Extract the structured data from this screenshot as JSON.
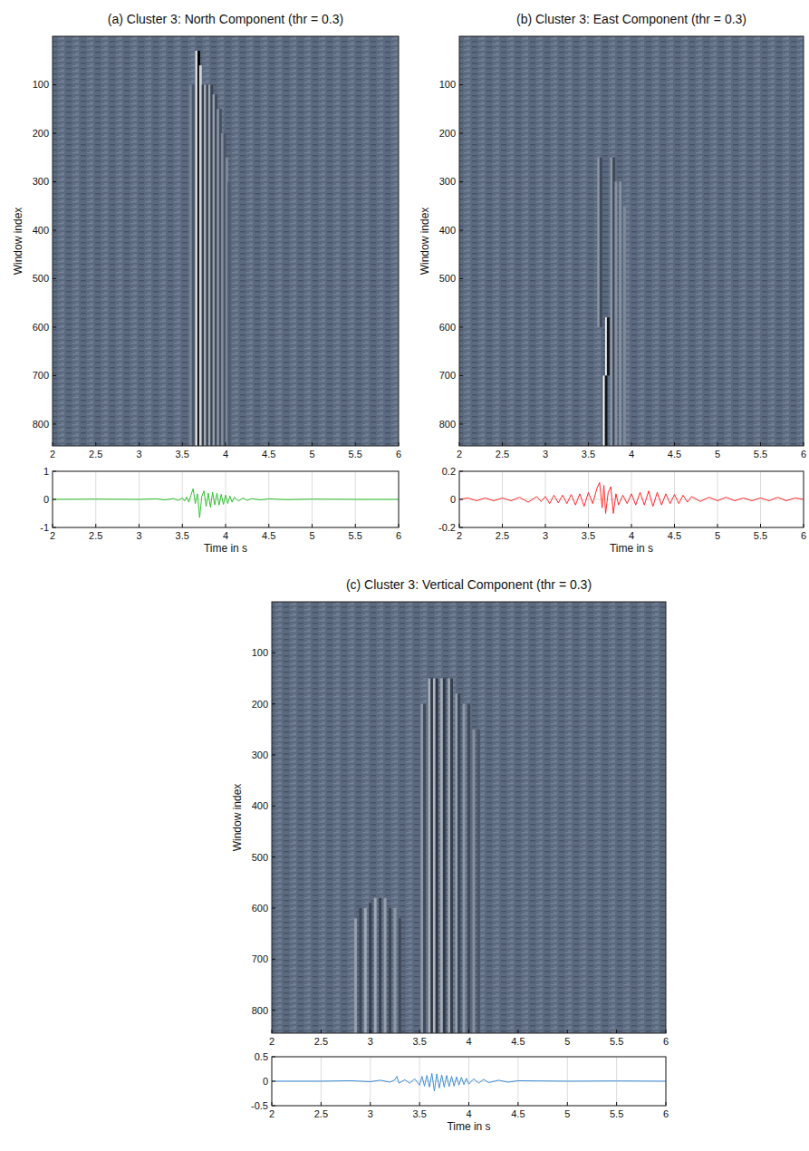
{
  "chart_data": [
    {
      "type": "heatmap",
      "title": "(a) Cluster 3: North Component (thr = 0.3)",
      "y_label": "Window index",
      "xlim": [
        2,
        6
      ],
      "xticks": [
        2,
        2.5,
        3,
        3.5,
        4,
        4.5,
        5,
        5.5,
        6
      ],
      "ylim": [
        845,
        0
      ],
      "yticks": [
        100,
        200,
        300,
        400,
        500,
        600,
        700,
        800
      ],
      "stripes": [
        {
          "time": 3.6,
          "windows": [
            100,
            845
          ],
          "value": 0.2
        },
        {
          "time": 3.625,
          "windows": [
            100,
            845
          ],
          "value": -0.2
        },
        {
          "time": 3.665,
          "windows": [
            30,
            845
          ],
          "value": 0.8
        },
        {
          "time": 3.69,
          "windows": [
            30,
            845
          ],
          "value": -1
        },
        {
          "time": 3.71,
          "windows": [
            60,
            845
          ],
          "value": 0.7
        },
        {
          "time": 3.74,
          "windows": [
            100,
            845
          ],
          "value": -0.4
        },
        {
          "time": 3.765,
          "windows": [
            100,
            845
          ],
          "value": 0.45
        },
        {
          "time": 3.79,
          "windows": [
            100,
            845
          ],
          "value": -0.4
        },
        {
          "time": 3.815,
          "windows": [
            100,
            845
          ],
          "value": 0.4
        },
        {
          "time": 3.84,
          "windows": [
            100,
            845
          ],
          "value": -0.35
        },
        {
          "time": 3.865,
          "windows": [
            120,
            845
          ],
          "value": 0.35
        },
        {
          "time": 3.89,
          "windows": [
            120,
            845
          ],
          "value": -0.3
        },
        {
          "time": 3.915,
          "windows": [
            150,
            845
          ],
          "value": 0.3
        },
        {
          "time": 3.94,
          "windows": [
            150,
            845
          ],
          "value": -0.25
        },
        {
          "time": 3.965,
          "windows": [
            200,
            845
          ],
          "value": 0.25
        },
        {
          "time": 3.99,
          "windows": [
            200,
            845
          ],
          "value": -0.2
        },
        {
          "time": 4.015,
          "windows": [
            250,
            845
          ],
          "value": 0.2
        },
        {
          "time": 4.04,
          "windows": [
            300,
            845
          ],
          "value": -0.15
        }
      ]
    },
    {
      "type": "line",
      "x_label": "Time in s",
      "color": "#2fc42f",
      "grid": true,
      "xlim": [
        2,
        6
      ],
      "xticks": [
        2,
        2.5,
        3,
        3.5,
        4,
        4.5,
        5,
        5.5,
        6
      ],
      "ylim": [
        -1,
        1
      ],
      "yticks": [
        -1,
        0,
        1
      ],
      "x": [
        2.0,
        2.5,
        3.0,
        3.2,
        3.3,
        3.4,
        3.45,
        3.5,
        3.525,
        3.55,
        3.575,
        3.6,
        3.625,
        3.65,
        3.675,
        3.7,
        3.725,
        3.75,
        3.775,
        3.8,
        3.825,
        3.85,
        3.875,
        3.9,
        3.925,
        3.95,
        3.975,
        4.0,
        4.025,
        4.05,
        4.075,
        4.1,
        4.15,
        4.2,
        4.25,
        4.3,
        4.4,
        4.5,
        4.7,
        5.0,
        5.5,
        6.0
      ],
      "values": [
        0,
        0.01,
        0,
        0.02,
        -0.02,
        0.03,
        -0.04,
        0.05,
        -0.06,
        0.08,
        -0.1,
        0.15,
        0.38,
        -0.15,
        0.2,
        -0.65,
        0.1,
        0.3,
        -0.25,
        0.22,
        -0.28,
        0.25,
        -0.2,
        0.22,
        -0.2,
        0.18,
        -0.18,
        0.15,
        -0.15,
        0.12,
        -0.1,
        0.08,
        -0.06,
        0.05,
        -0.04,
        0.03,
        -0.02,
        0.02,
        -0.01,
        0.01,
        0,
        0
      ]
    },
    {
      "type": "heatmap",
      "title": "(b) Cluster 3: East Component (thr = 0.3)",
      "y_label": "Window index",
      "xlim": [
        2,
        6
      ],
      "xticks": [
        2,
        2.5,
        3,
        3.5,
        4,
        4.5,
        5,
        5.5,
        6
      ],
      "ylim": [
        845,
        0
      ],
      "yticks": [
        100,
        200,
        300,
        400,
        500,
        600,
        700,
        800
      ],
      "stripes": [
        {
          "time": 3.62,
          "windows": [
            250,
            600
          ],
          "value": 0.3
        },
        {
          "time": 3.645,
          "windows": [
            250,
            600
          ],
          "value": -0.3
        },
        {
          "time": 3.77,
          "windows": [
            250,
            845
          ],
          "value": 0.3
        },
        {
          "time": 3.795,
          "windows": [
            250,
            845
          ],
          "value": -0.3
        },
        {
          "time": 3.82,
          "windows": [
            300,
            845
          ],
          "value": 0.25
        },
        {
          "time": 3.87,
          "windows": [
            300,
            845
          ],
          "value": 0.25
        },
        {
          "time": 3.92,
          "windows": [
            350,
            845
          ],
          "value": 0.2
        },
        {
          "time": 3.71,
          "windows": [
            580,
            700
          ],
          "value": 0.9
        },
        {
          "time": 3.73,
          "windows": [
            580,
            700
          ],
          "value": -0.8
        },
        {
          "time": 3.685,
          "windows": [
            700,
            845
          ],
          "value": 1
        },
        {
          "time": 3.705,
          "windows": [
            700,
            845
          ],
          "value": -0.8
        }
      ]
    },
    {
      "type": "line",
      "x_label": "Time in s",
      "color": "#ff2a2a",
      "grid": true,
      "xlim": [
        2,
        6
      ],
      "xticks": [
        2,
        2.5,
        3,
        3.5,
        4,
        4.5,
        5,
        5.5,
        6
      ],
      "ylim": [
        -0.2,
        0.2
      ],
      "yticks": [
        -0.2,
        0,
        0.2
      ],
      "x": [
        2.0,
        2.1,
        2.2,
        2.3,
        2.4,
        2.5,
        2.6,
        2.7,
        2.8,
        2.9,
        2.95,
        3.0,
        3.05,
        3.1,
        3.15,
        3.2,
        3.25,
        3.3,
        3.35,
        3.4,
        3.45,
        3.5,
        3.55,
        3.6,
        3.63,
        3.66,
        3.68,
        3.7,
        3.73,
        3.76,
        3.79,
        3.82,
        3.85,
        3.9,
        3.95,
        4.0,
        4.05,
        4.1,
        4.15,
        4.2,
        4.25,
        4.3,
        4.35,
        4.4,
        4.45,
        4.5,
        4.55,
        4.6,
        4.65,
        4.7,
        4.8,
        4.9,
        5.0,
        5.1,
        5.2,
        5.3,
        5.4,
        5.5,
        5.6,
        5.7,
        5.8,
        5.9,
        6.0
      ],
      "values": [
        0,
        0.01,
        -0.01,
        0.01,
        -0.01,
        0.01,
        -0.01,
        0.015,
        -0.02,
        0.02,
        -0.015,
        0.02,
        -0.03,
        0.03,
        -0.025,
        0.03,
        -0.03,
        0.035,
        -0.04,
        0.04,
        -0.05,
        0.05,
        -0.03,
        0.08,
        0.12,
        -0.06,
        0.1,
        -0.1,
        0.05,
        0.09,
        -0.1,
        0.04,
        -0.04,
        0.03,
        -0.03,
        0.04,
        -0.04,
        0.05,
        -0.04,
        0.06,
        -0.05,
        0.05,
        -0.04,
        0.04,
        -0.03,
        0.035,
        -0.03,
        0.03,
        -0.02,
        0.02,
        -0.015,
        0.015,
        -0.01,
        0.015,
        -0.01,
        0.01,
        -0.01,
        0.01,
        -0.01,
        0.015,
        -0.01,
        0.01,
        0
      ]
    },
    {
      "type": "heatmap",
      "title": "(c) Cluster 3: Vertical Component (thr = 0.3)",
      "y_label": "Window index",
      "xlim": [
        2,
        6
      ],
      "xticks": [
        2,
        2.5,
        3,
        3.5,
        4,
        4.5,
        5,
        5.5,
        6
      ],
      "ylim": [
        845,
        0
      ],
      "yticks": [
        100,
        200,
        300,
        400,
        500,
        600,
        700,
        800
      ],
      "stripes": [
        {
          "time": 2.85,
          "windows": [
            620,
            845
          ],
          "value": 0.35
        },
        {
          "time": 2.9,
          "windows": [
            600,
            845
          ],
          "value": -0.35
        },
        {
          "time": 2.95,
          "windows": [
            600,
            845
          ],
          "value": 0.4
        },
        {
          "time": 3.0,
          "windows": [
            590,
            845
          ],
          "value": -0.4
        },
        {
          "time": 3.05,
          "windows": [
            580,
            845
          ],
          "value": 0.4
        },
        {
          "time": 3.1,
          "windows": [
            580,
            845
          ],
          "value": -0.4
        },
        {
          "time": 3.15,
          "windows": [
            580,
            845
          ],
          "value": 0.35
        },
        {
          "time": 3.2,
          "windows": [
            600,
            845
          ],
          "value": -0.35
        },
        {
          "time": 3.25,
          "windows": [
            600,
            845
          ],
          "value": 0.3
        },
        {
          "time": 3.3,
          "windows": [
            620,
            845
          ],
          "value": -0.3
        },
        {
          "time": 3.525,
          "windows": [
            200,
            845
          ],
          "value": 0.3
        },
        {
          "time": 3.55,
          "windows": [
            200,
            845
          ],
          "value": -0.3
        },
        {
          "time": 3.6,
          "windows": [
            150,
            845
          ],
          "value": 0.45
        },
        {
          "time": 3.625,
          "windows": [
            150,
            845
          ],
          "value": -0.45
        },
        {
          "time": 3.65,
          "windows": [
            150,
            845
          ],
          "value": 0.5
        },
        {
          "time": 3.675,
          "windows": [
            150,
            845
          ],
          "value": -0.5
        },
        {
          "time": 3.725,
          "windows": [
            150,
            845
          ],
          "value": 0.45
        },
        {
          "time": 3.75,
          "windows": [
            150,
            845
          ],
          "value": -0.45
        },
        {
          "time": 3.8,
          "windows": [
            150,
            845
          ],
          "value": 0.4
        },
        {
          "time": 3.825,
          "windows": [
            150,
            845
          ],
          "value": -0.4
        },
        {
          "time": 3.875,
          "windows": [
            180,
            845
          ],
          "value": 0.35
        },
        {
          "time": 3.9,
          "windows": [
            180,
            845
          ],
          "value": -0.35
        },
        {
          "time": 3.95,
          "windows": [
            200,
            845
          ],
          "value": 0.3
        },
        {
          "time": 4.0,
          "windows": [
            200,
            845
          ],
          "value": -0.3
        },
        {
          "time": 4.05,
          "windows": [
            250,
            845
          ],
          "value": 0.25
        },
        {
          "time": 4.1,
          "windows": [
            250,
            845
          ],
          "value": -0.2
        }
      ]
    },
    {
      "type": "line",
      "x_label": "Time in s",
      "color": "#3f8fd8",
      "grid": true,
      "xlim": [
        2,
        6
      ],
      "xticks": [
        2,
        2.5,
        3,
        3.5,
        4,
        4.5,
        5,
        5.5,
        6
      ],
      "ylim": [
        -0.5,
        0.5
      ],
      "yticks": [
        -0.5,
        0,
        0.5
      ],
      "x": [
        2.0,
        2.5,
        2.8,
        3.0,
        3.1,
        3.2,
        3.25,
        3.27,
        3.29,
        3.35,
        3.4,
        3.45,
        3.5,
        3.525,
        3.55,
        3.575,
        3.6,
        3.625,
        3.65,
        3.675,
        3.7,
        3.725,
        3.75,
        3.775,
        3.8,
        3.825,
        3.85,
        3.875,
        3.9,
        3.925,
        3.95,
        3.975,
        4.0,
        4.05,
        4.1,
        4.15,
        4.2,
        4.3,
        4.4,
        4.5,
        5.0,
        5.5,
        6.0
      ],
      "values": [
        0,
        0,
        0.01,
        -0.01,
        0.02,
        -0.02,
        0.03,
        0.1,
        -0.04,
        0.03,
        -0.04,
        0.05,
        -0.08,
        0.1,
        -0.1,
        0.12,
        -0.12,
        0.16,
        -0.2,
        0.15,
        -0.14,
        0.13,
        -0.12,
        0.12,
        -0.11,
        0.1,
        -0.1,
        0.09,
        -0.08,
        0.08,
        -0.07,
        0.06,
        -0.06,
        0.05,
        -0.04,
        0.04,
        -0.03,
        0.02,
        -0.02,
        0.01,
        0,
        0.005,
        0
      ]
    }
  ]
}
